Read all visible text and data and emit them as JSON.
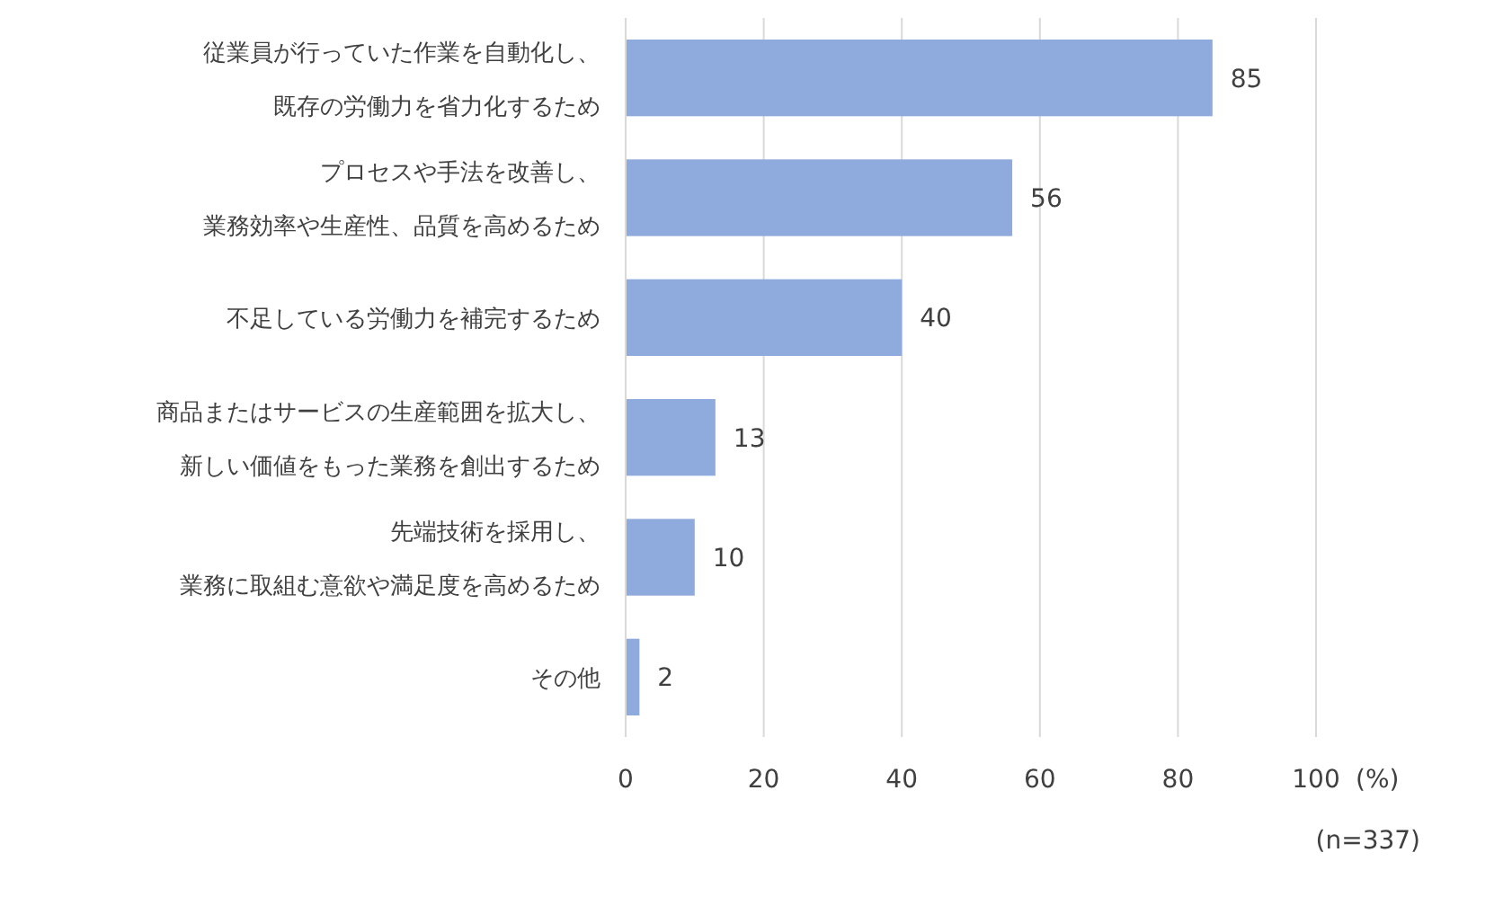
{
  "chart_data": {
    "type": "bar",
    "orientation": "horizontal",
    "categories": [
      "従業員が行っていた作業を自動化し、既存の労働力を省力化するため",
      "プロセスや手法を改善し、業務効率や生産性、品質を高めるため",
      "不足している労働力を補完するため",
      "商品またはサービスの生産範囲を拡大し、新しい価値をもった業務を創出するため",
      "先端技術を採用し、業務に取組む意欲や満足度を高めるため",
      "その他"
    ],
    "values": [
      85,
      56,
      40,
      13,
      10,
      2
    ],
    "color": "#8faadc",
    "xlim": [
      0,
      100
    ],
    "xticks": [
      0,
      20,
      40,
      60,
      80,
      100
    ],
    "xlabel": "(%)",
    "annotations": [
      "(n=337)"
    ],
    "grid": "x",
    "data_labels": true
  }
}
